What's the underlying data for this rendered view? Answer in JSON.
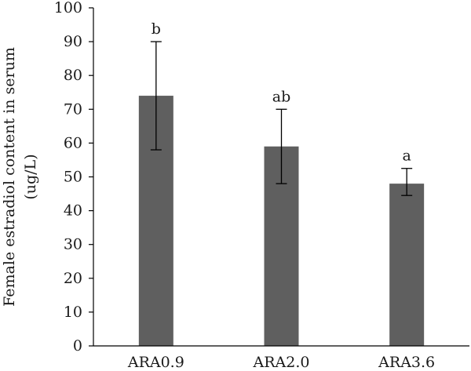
{
  "chart_data": {
    "type": "bar",
    "title": "",
    "xlabel": "",
    "ylabel_lines": [
      "Female estradiol content in serum",
      "(ug/L)"
    ],
    "ylim": [
      0,
      100
    ],
    "yticks": [
      0,
      10,
      20,
      30,
      40,
      50,
      60,
      70,
      80,
      90,
      100
    ],
    "categories": [
      "ARA0.9",
      "ARA2.0",
      "ARA3.6"
    ],
    "values": [
      74,
      59,
      48
    ],
    "error_low": [
      58,
      48,
      44.5
    ],
    "error_high": [
      90,
      70,
      52.5
    ],
    "significance": [
      "b",
      "ab",
      "a"
    ],
    "bar_color": "#5f5f5f",
    "axis_color": "#000000",
    "grid": false,
    "legend": "none"
  }
}
